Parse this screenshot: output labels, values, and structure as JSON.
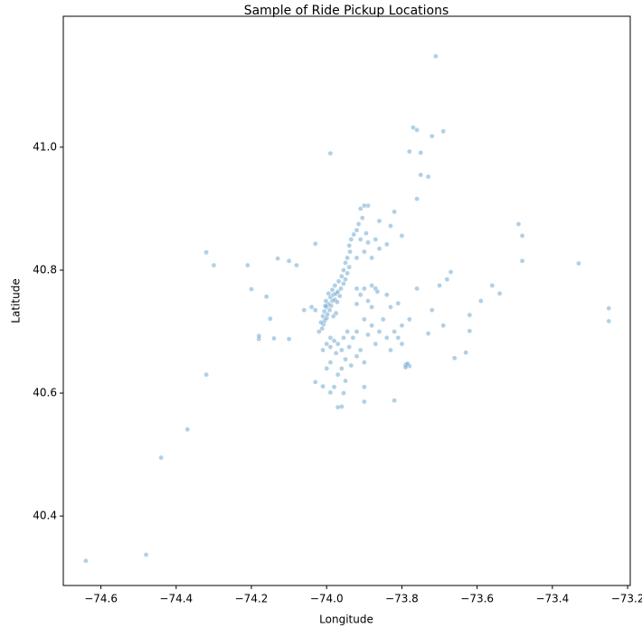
{
  "chart_data": {
    "type": "scatter",
    "title": "Sample of Ride Pickup Locations",
    "x_label": "Longitude",
    "y_label": "Latitude",
    "color": "#1f77b4",
    "xlim": [
      -74.7,
      -73.193
    ],
    "ylim": [
      40.287,
      41.213
    ],
    "xticks": [
      {
        "value": -74.6,
        "label": "−74.6"
      },
      {
        "value": -74.4,
        "label": "−74.4"
      },
      {
        "value": -74.2,
        "label": "−74.2"
      },
      {
        "value": -74.0,
        "label": "−74.0"
      },
      {
        "value": -73.8,
        "label": "−73.8"
      },
      {
        "value": -73.6,
        "label": "−73.6"
      },
      {
        "value": -73.4,
        "label": "−73.4"
      },
      {
        "value": -73.2,
        "label": "−73.2"
      }
    ],
    "yticks": [
      40.4,
      40.6,
      40.8,
      {
        "value": 41,
        "label": "41.0"
      }
    ],
    "x": [
      -74.64,
      -74.48,
      -74.44,
      -74.37,
      -74.32,
      -74.32,
      -74.3,
      -74.21,
      -74.2,
      -74.18,
      -74.18,
      -74.16,
      -74.15,
      -74.13,
      -74.14,
      -74.1,
      -74.1,
      -74.08,
      -74.03,
      -73.99,
      -73.71,
      -73.77,
      -73.76,
      -73.69,
      -73.78,
      -73.75,
      -73.72,
      -73.75,
      -73.73,
      -73.76,
      -73.49,
      -73.48,
      -73.48,
      -73.33,
      -73.25,
      -73.25,
      -73.54,
      -73.56,
      -73.59,
      -73.62,
      -73.62,
      -73.63,
      -73.66,
      -73.67,
      -73.68,
      -73.7,
      -73.72,
      -73.69,
      -73.73,
      -73.76,
      -73.78,
      -73.81,
      -73.84,
      -73.82,
      -73.9,
      -73.96,
      -73.97,
      -73.8,
      -73.83,
      -73.82,
      -73.86,
      -73.89,
      -73.84,
      -73.79,
      -73.78,
      -73.785,
      -73.79,
      -74.03,
      -74.01,
      -73.99,
      -74.012,
      -74.008,
      -74.005,
      -74.0,
      -73.998,
      -74.006,
      -73.992,
      -73.988,
      -73.995,
      -73.985,
      -73.978,
      -73.99,
      -73.982,
      -73.975,
      -73.97,
      -73.985,
      -73.962,
      -73.978,
      -73.955,
      -73.968,
      -73.95,
      -73.96,
      -73.945,
      -73.955,
      -73.94,
      -73.95,
      -73.945,
      -73.938,
      -73.94,
      -73.935,
      -73.928,
      -73.92,
      -73.915,
      -73.905,
      -73.91,
      -73.9,
      -74.0,
      -74.01,
      -74.015,
      -73.982,
      -73.975,
      -73.965,
      -73.972,
      -73.995,
      -74.002,
      -74.004,
      -74.02,
      -74.03,
      -74.04,
      -74.06,
      -73.99,
      -73.98,
      -73.97,
      -73.955,
      -73.945,
      -73.96,
      -73.975,
      -73.95,
      -73.94,
      -73.93,
      -73.92,
      -73.99,
      -74.0,
      -74.01,
      -73.96,
      -73.97,
      -73.95,
      -73.935,
      -73.92,
      -73.91,
      -73.9,
      -73.99,
      -74.0,
      -73.98,
      -73.955,
      -73.9,
      -73.92,
      -73.91,
      -73.9,
      -73.89,
      -73.88,
      -73.87,
      -73.88,
      -73.865,
      -73.92,
      -73.9,
      -73.88,
      -73.86,
      -73.85,
      -73.83,
      -73.84,
      -73.82,
      -73.81,
      -73.8,
      -73.87,
      -73.89,
      -73.83,
      -73.8,
      -73.92,
      -73.9,
      -73.89,
      -73.88,
      -73.91,
      -73.895,
      -73.87,
      -73.86
    ],
    "values": [
      40.327,
      40.337,
      40.495,
      40.541,
      40.63,
      40.829,
      40.808,
      40.808,
      40.769,
      40.688,
      40.693,
      40.757,
      40.721,
      40.819,
      40.689,
      40.688,
      40.815,
      40.808,
      40.843,
      40.99,
      41.148,
      41.032,
      41.028,
      41.026,
      40.993,
      40.991,
      41.018,
      40.955,
      40.952,
      40.916,
      40.875,
      40.856,
      40.815,
      40.811,
      40.738,
      40.717,
      40.762,
      40.775,
      40.75,
      40.727,
      40.701,
      40.666,
      40.657,
      40.797,
      40.785,
      40.775,
      40.735,
      40.71,
      40.697,
      40.77,
      40.72,
      40.746,
      40.76,
      40.588,
      40.586,
      40.578,
      40.577,
      40.856,
      40.872,
      40.895,
      40.88,
      40.905,
      40.842,
      40.646,
      40.644,
      40.648,
      40.642,
      40.618,
      40.611,
      40.601,
      40.705,
      40.712,
      40.718,
      40.722,
      40.728,
      40.733,
      40.735,
      40.742,
      40.745,
      40.75,
      40.752,
      40.756,
      40.76,
      40.762,
      40.765,
      40.768,
      40.77,
      40.775,
      40.778,
      40.782,
      40.785,
      40.79,
      40.795,
      40.8,
      40.805,
      40.812,
      40.82,
      40.83,
      40.84,
      40.85,
      40.858,
      40.865,
      40.875,
      40.885,
      40.9,
      40.905,
      40.74,
      40.725,
      40.715,
      40.725,
      40.73,
      40.758,
      40.748,
      40.762,
      40.75,
      40.742,
      40.7,
      40.735,
      40.74,
      40.735,
      40.69,
      40.685,
      40.68,
      40.69,
      40.7,
      40.67,
      40.665,
      40.655,
      40.675,
      40.69,
      40.7,
      40.675,
      40.68,
      40.67,
      40.64,
      40.63,
      40.62,
      40.645,
      40.66,
      40.67,
      40.65,
      40.65,
      40.64,
      40.61,
      40.6,
      40.61,
      40.745,
      40.76,
      40.77,
      40.75,
      40.74,
      40.77,
      40.775,
      40.765,
      40.77,
      40.72,
      40.71,
      40.7,
      40.72,
      40.74,
      40.69,
      40.7,
      40.69,
      40.71,
      40.68,
      40.695,
      40.67,
      40.68,
      40.82,
      40.83,
      40.845,
      40.82,
      40.85,
      40.86,
      40.85,
      40.835
    ]
  }
}
